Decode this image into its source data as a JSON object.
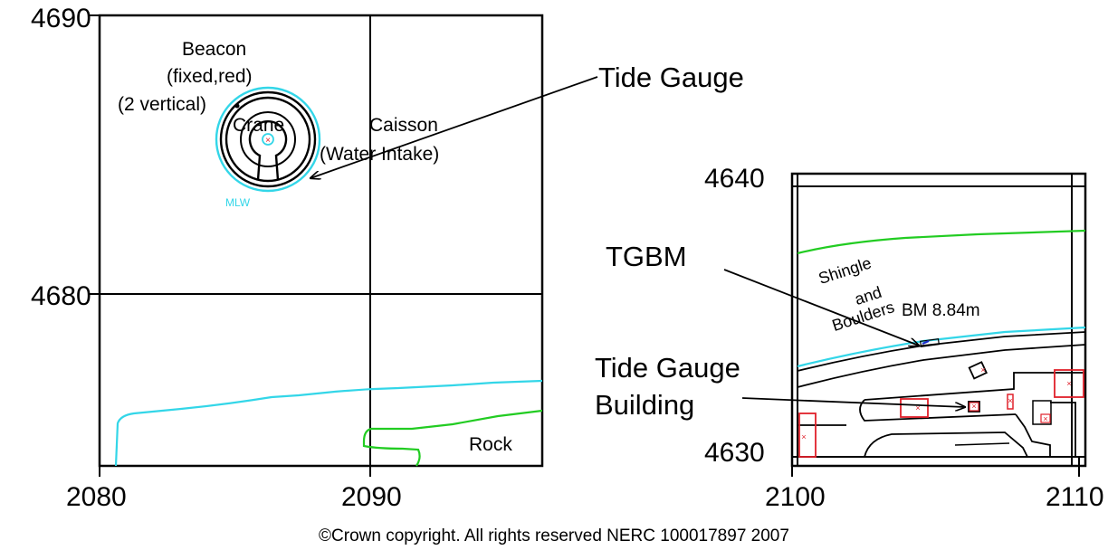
{
  "left_map": {
    "y_ticks": [
      "4690",
      "4680"
    ],
    "x_ticks": [
      "2080",
      "2090"
    ],
    "labels": {
      "beacon": "Beacon",
      "fixed_red": "(fixed,red)",
      "two_vertical": "(2 vertical)",
      "crane": "Crane",
      "caisson": "Caisson",
      "water_intake": "(Water Intake)",
      "mlw": "MLW",
      "rock": "Rock"
    },
    "callout": "Tide Gauge"
  },
  "right_map": {
    "y_ticks": [
      "4640",
      "4630"
    ],
    "x_ticks": [
      "2100",
      "2110"
    ],
    "labels": {
      "shingle": "Shingle",
      "and": "and",
      "boulders": "Boulders",
      "bm": "BM 8.84m"
    },
    "callouts": {
      "tgbm": "TGBM",
      "tide_gauge": "Tide Gauge",
      "building": "Building"
    }
  },
  "copyright": "©Crown copyright. All rights reserved  NERC 100017897 2007",
  "colors": {
    "mlw_line": "#33d6e8",
    "vegetation_line": "#22cc22",
    "structure": "#e0202a",
    "benchmark": "#1a2ecc"
  }
}
